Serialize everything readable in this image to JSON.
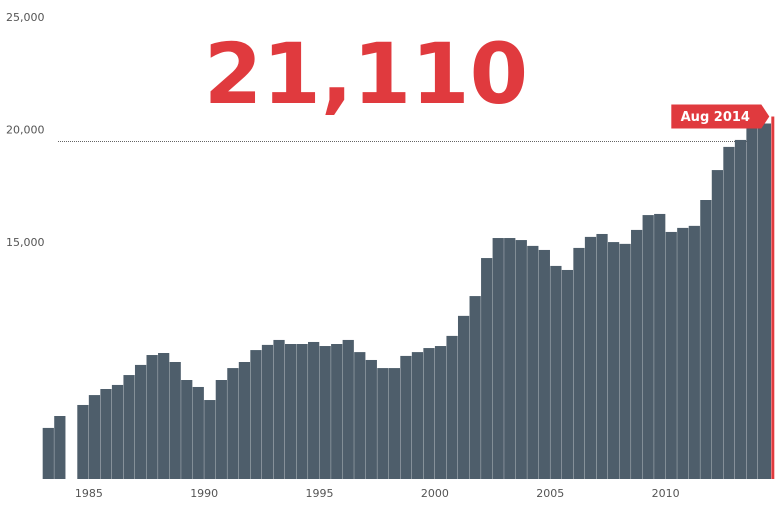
{
  "chart_data": {
    "type": "bar",
    "headline": "21,110",
    "annotation": "Aug 2014",
    "x": [
      1983.0,
      1983.5,
      1984.0,
      1984.5,
      1985.0,
      1985.5,
      1986.0,
      1986.5,
      1987.0,
      1987.5,
      1988.0,
      1988.5,
      1989.0,
      1989.5,
      1990.0,
      1990.5,
      1991.0,
      1991.5,
      1992.0,
      1992.5,
      1993.0,
      1993.5,
      1994.0,
      1994.5,
      1995.0,
      1995.5,
      1996.0,
      1996.5,
      1997.0,
      1997.5,
      1998.0,
      1998.5,
      1999.0,
      1999.5,
      2000.0,
      2000.5,
      2001.0,
      2001.5,
      2002.0,
      2002.5,
      2003.0,
      2003.5,
      2004.0,
      2004.5,
      2005.0,
      2005.5,
      2006.0,
      2006.5,
      2007.0,
      2007.5,
      2008.0,
      2008.5,
      2009.0,
      2009.5,
      2010.0,
      2010.5,
      2011.0,
      2011.5,
      2012.0,
      2012.5,
      2013.0,
      2013.5,
      2014.0,
      2014.58
    ],
    "values": [
      7270,
      7800,
      null,
      8290,
      8730,
      9000,
      9180,
      9620,
      10070,
      10510,
      10600,
      10200,
      9400,
      9090,
      8510,
      9400,
      9930,
      10200,
      10730,
      10960,
      11180,
      11000,
      11000,
      11090,
      10910,
      11000,
      11180,
      10640,
      10290,
      9930,
      9930,
      10470,
      10640,
      10820,
      10910,
      11360,
      12250,
      13130,
      14820,
      15710,
      15710,
      15620,
      15360,
      15180,
      14470,
      14290,
      15270,
      15760,
      15890,
      15530,
      15450,
      16070,
      16730,
      16780,
      15980,
      16160,
      16250,
      17400,
      18730,
      19760,
      20070,
      20960,
      20800,
      21110
    ],
    "color": "#4e5e6b",
    "highlight_color": "#e03a3e",
    "xlim": [
      1981.15,
      2015.0
    ],
    "xticks": [
      1985,
      1990,
      1995,
      2000,
      2005,
      2010
    ],
    "ylim": [
      5000,
      25000
    ],
    "yticks": [
      {
        "value": 15000,
        "label": "15,000"
      },
      {
        "value": 20000,
        "label": "20,000"
      },
      {
        "value": 25000,
        "label": "25,000"
      }
    ],
    "ref_line": 20000
  }
}
